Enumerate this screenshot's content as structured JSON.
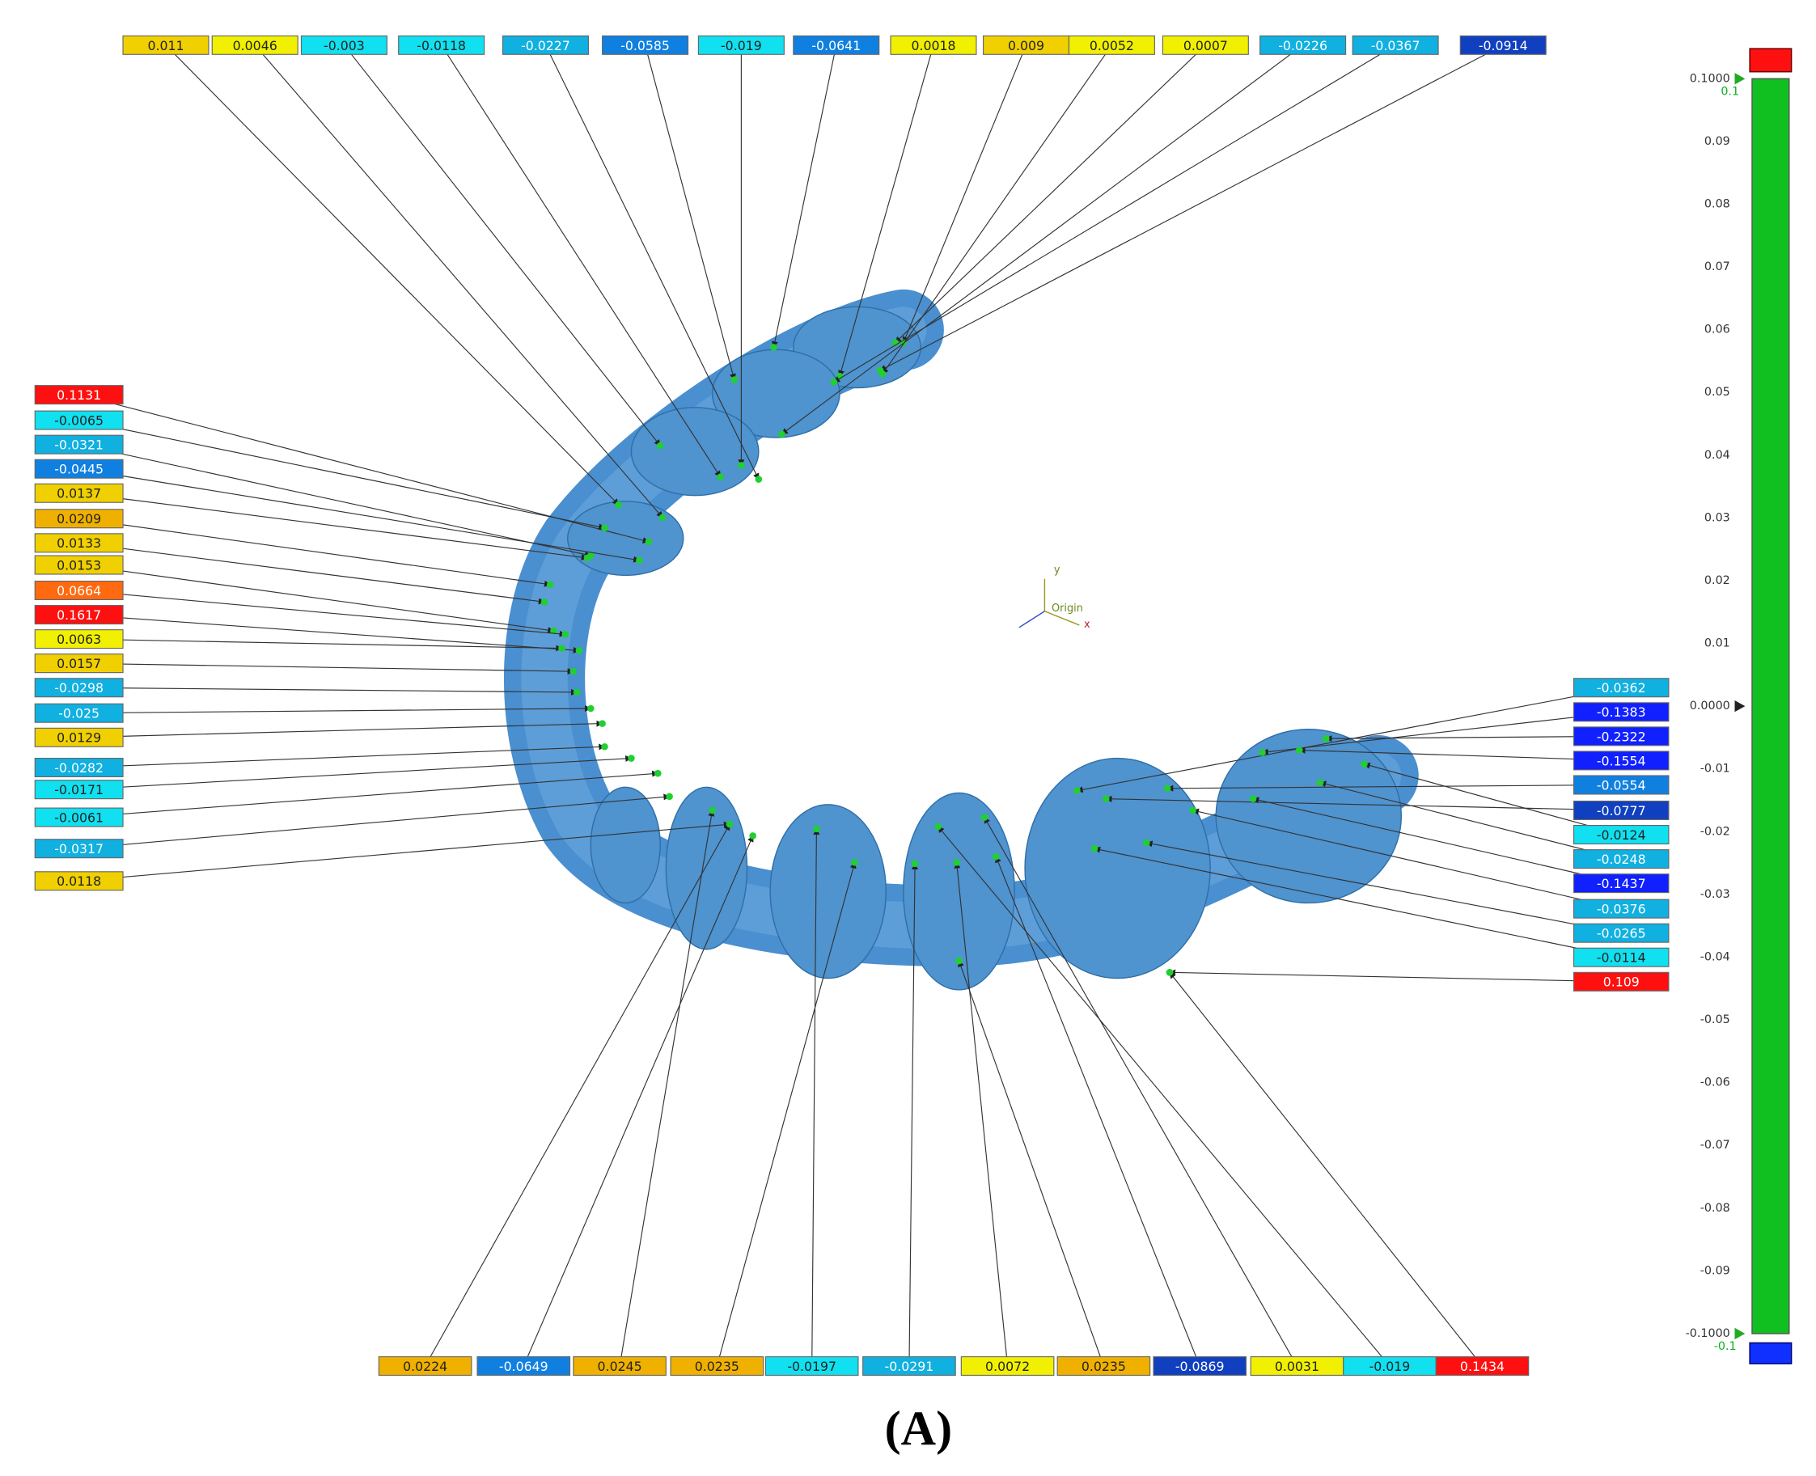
{
  "top_labels": [
    "0.011",
    "0.0046",
    "-0.003",
    "-0.0118",
    "-0.0227",
    "-0.0585",
    "-0.019",
    "-0.0641",
    "0.0018",
    "0.009",
    "0.0052",
    "0.0007",
    "-0.0226",
    "-0.0367",
    "-0.0914"
  ],
  "left_labels": [
    "0.1131",
    "-0.0065",
    "-0.0321",
    "-0.0445",
    "0.0137",
    "0.0209",
    "0.0133",
    "0.0153",
    "0.0664",
    "0.1617",
    "0.0063",
    "0.0157",
    "-0.0298",
    "-0.025",
    "0.0129",
    "-0.0282",
    "-0.0171",
    "-0.0061",
    "-0.0317",
    "0.0118"
  ],
  "right_labels": [
    "-0.0362",
    "-0.1383",
    "-0.2322",
    "-0.1554",
    "-0.0554",
    "-0.0777",
    "-0.0124",
    "-0.0248",
    "-0.1437",
    "-0.0376",
    "-0.0265",
    "-0.0114",
    "0.109"
  ],
  "bottom_labels": [
    "0.0224",
    "-0.0649",
    "0.0245",
    "0.0235",
    "-0.0197",
    "-0.0291",
    "0.0072",
    "0.0235",
    "-0.0869",
    "0.0031",
    "-0.019",
    "0.1434"
  ],
  "color_scale": {
    "max_marker": "0.1",
    "min_marker": "-0.1",
    "ticks": [
      "0.1000",
      "0.09",
      "0.08",
      "0.07",
      "0.06",
      "0.05",
      "0.04",
      "0.03",
      "0.02",
      "0.01",
      "0.0000",
      "-0.01",
      "-0.02",
      "-0.03",
      "-0.04",
      "-0.05",
      "-0.06",
      "-0.07",
      "-0.08",
      "-0.09",
      "-0.1000"
    ]
  },
  "axes_gizmo": {
    "y": "y",
    "x": "x",
    "origin": "Origin"
  },
  "caption": "(A)"
}
